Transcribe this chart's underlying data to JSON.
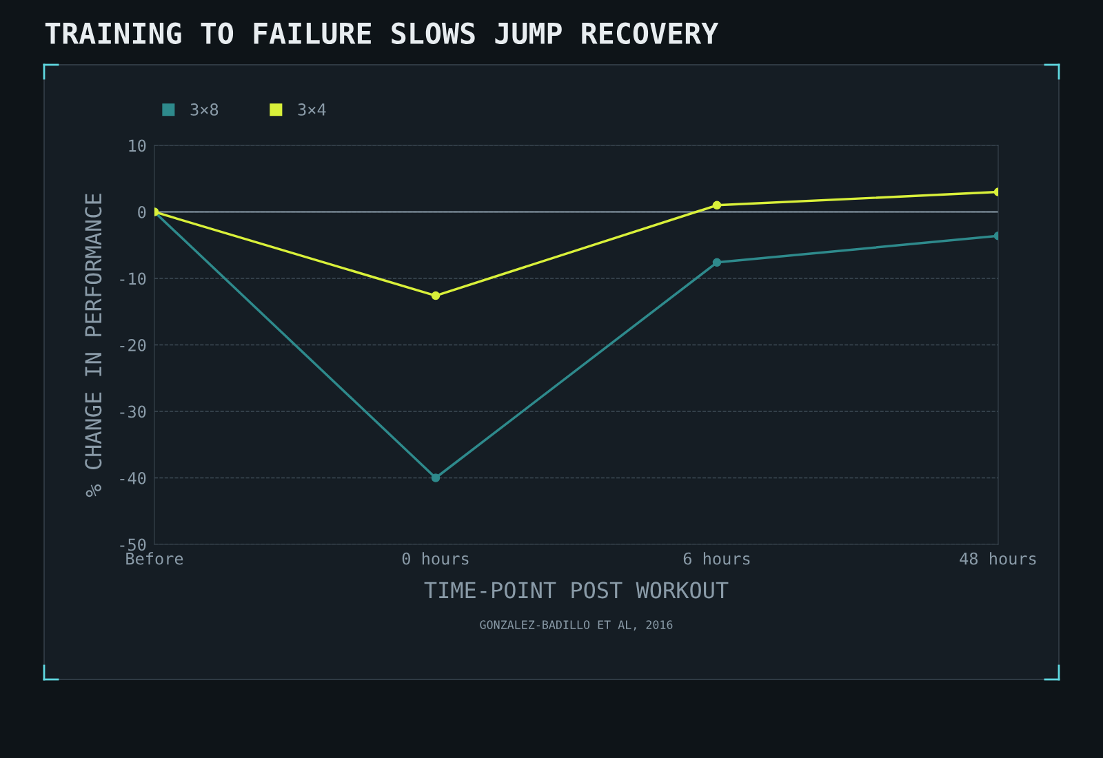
{
  "chart_data": {
    "type": "line",
    "title": "TRAINING TO FAILURE SLOWS JUMP RECOVERY",
    "xlabel": "TIME-POINT POST WORKOUT",
    "ylabel": "% CHANGE IN PERFORMANCE",
    "categories": [
      "Before",
      "0 hours",
      "6 hours",
      "48 hours"
    ],
    "series": [
      {
        "name": "3×8",
        "color": "#2e8a8c",
        "values": [
          0,
          -40,
          -7.6,
          -3.6
        ]
      },
      {
        "name": "3×4",
        "color": "#d9f03a",
        "values": [
          0,
          -12.6,
          1.0,
          3.0
        ]
      }
    ],
    "ylim": [
      -50,
      10
    ],
    "yticks": [
      -50,
      -40,
      -30,
      -20,
      -10,
      0,
      10
    ],
    "grid": "y",
    "legend": "top left",
    "marker": "circle",
    "line_style": "solid",
    "ref_lines": [
      {
        "axis": "y",
        "value": 0,
        "label": null,
        "color": "#8a9ba8"
      }
    ],
    "annotations": [
      "GONZALEZ-BADILLO ET AL, 2016"
    ]
  }
}
